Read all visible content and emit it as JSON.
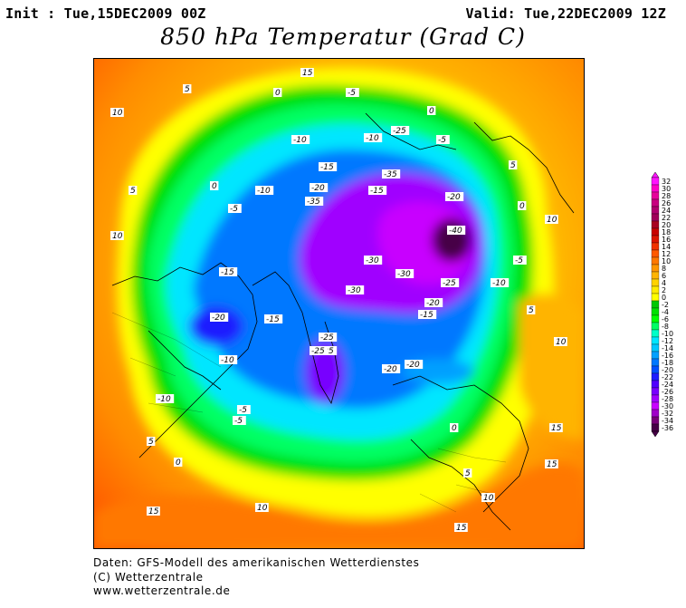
{
  "header": {
    "init": "Init : Tue,15DEC2009 00Z",
    "valid": "Valid: Tue,22DEC2009 12Z",
    "title": "850 hPa Temperatur (Grad C)"
  },
  "legend": {
    "values": [
      32,
      30,
      28,
      26,
      24,
      22,
      20,
      18,
      16,
      14,
      12,
      10,
      8,
      6,
      4,
      2,
      0,
      -2,
      -4,
      -6,
      -8,
      -10,
      -12,
      -14,
      -16,
      -18,
      -20,
      -22,
      -24,
      -26,
      -28,
      -30,
      -32,
      -34,
      -36
    ],
    "colors": [
      "#ff14ff",
      "#ff00c8",
      "#e6009a",
      "#c80080",
      "#b0006e",
      "#a0005a",
      "#a80020",
      "#c80000",
      "#dc1400",
      "#f03200",
      "#ff5a00",
      "#ff7800",
      "#ff9600",
      "#ffb400",
      "#ffd200",
      "#ffeb00",
      "#ffff00",
      "#00c800",
      "#00e000",
      "#00ff00",
      "#00ff64",
      "#00ffc8",
      "#00e6ff",
      "#00c8ff",
      "#00a0ff",
      "#0078ff",
      "#0050ff",
      "#1e1eff",
      "#5000ff",
      "#7800ff",
      "#a000ff",
      "#c800ff",
      "#a000c8",
      "#780078",
      "#460046"
    ]
  },
  "map": {
    "isotherm_labels": [
      "10",
      "5",
      "0",
      "-5",
      "-10",
      "-15",
      "-20",
      "-25",
      "-30",
      "-35",
      "-40",
      "5",
      "10",
      "15",
      "0",
      "-5",
      "-10",
      "-15",
      "-20",
      "-25",
      "-30",
      "-35",
      "5",
      "10",
      "15",
      "0",
      "-5",
      "-10",
      "-15",
      "-20",
      "-25",
      "-5",
      "-10",
      "-15",
      "-20",
      "0",
      "5",
      "10",
      "15",
      "-10",
      "-5",
      "0",
      "5",
      "10",
      "15",
      "-25",
      "-20",
      "-15",
      "-10",
      "-5",
      "0",
      "5",
      "10",
      "15",
      "-30",
      "-25",
      "-20"
    ]
  },
  "footer": {
    "line1": "Daten: GFS-Modell des amerikanischen Wetterdienstes",
    "line2": "(C) Wetterzentrale",
    "line3": "www.wetterzentrale.de"
  }
}
